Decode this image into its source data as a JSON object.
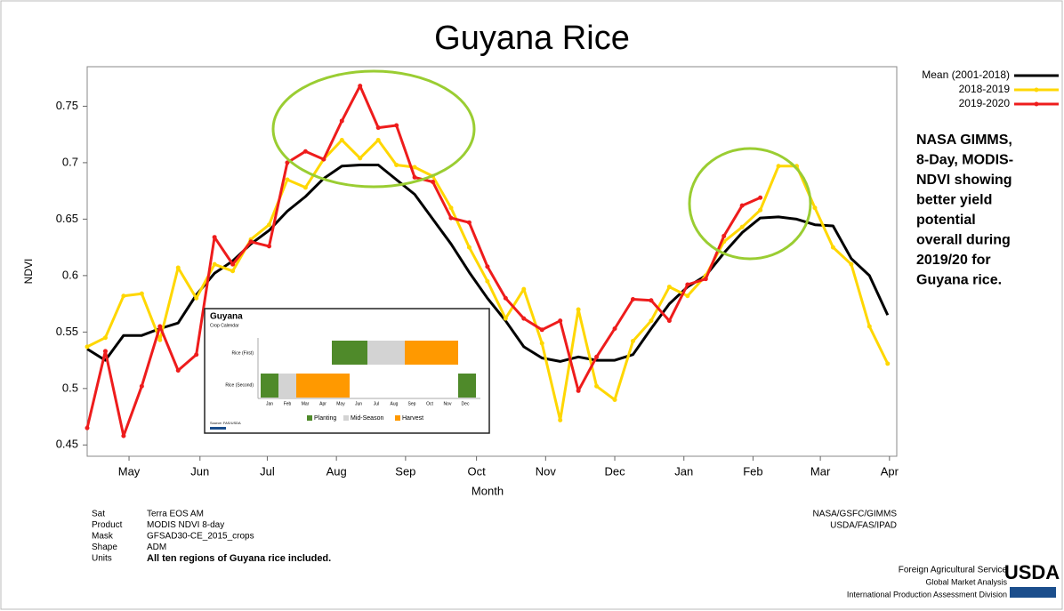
{
  "chart_data": {
    "type": "line",
    "title": "Guyana Rice",
    "x_label": "Month",
    "y_label": "NDVI",
    "x": [
      0,
      1,
      2,
      3,
      4,
      5,
      6,
      7,
      8,
      9,
      10,
      11,
      12,
      13,
      14,
      15,
      16,
      17,
      18,
      19,
      20,
      21,
      22,
      23,
      24,
      25,
      26,
      27,
      28,
      29,
      30,
      31,
      32,
      33,
      34,
      35,
      36,
      37,
      38,
      39,
      40,
      41,
      42,
      43,
      44
    ],
    "xlim": [
      0,
      44.5
    ],
    "xticks": [
      {
        "value": 2.3,
        "label": "May"
      },
      {
        "value": 6.2,
        "label": "Jun"
      },
      {
        "value": 9.9,
        "label": "Jul"
      },
      {
        "value": 13.7,
        "label": "Aug"
      },
      {
        "value": 17.5,
        "label": "Sep"
      },
      {
        "value": 21.4,
        "label": "Oct"
      },
      {
        "value": 25.2,
        "label": "Nov"
      },
      {
        "value": 29.0,
        "label": "Dec"
      },
      {
        "value": 32.8,
        "label": "Jan"
      },
      {
        "value": 36.6,
        "label": "Feb"
      },
      {
        "value": 40.3,
        "label": "Mar"
      },
      {
        "value": 44.1,
        "label": "Apr"
      }
    ],
    "ylim": [
      0.44,
      0.785
    ],
    "yticks": [
      0.45,
      0.5,
      0.55,
      0.6,
      0.65,
      0.7,
      0.75
    ],
    "grid": false,
    "legend": "top-right",
    "series": [
      {
        "name": "Mean (2001-2018)",
        "color": "#000000",
        "markers": false,
        "values": [
          0.535,
          0.525,
          0.547,
          0.547,
          0.553,
          0.558,
          0.583,
          0.602,
          0.613,
          0.628,
          0.64,
          0.657,
          0.67,
          0.686,
          0.697,
          0.698,
          0.698,
          0.685,
          0.672,
          0.65,
          0.628,
          0.603,
          0.58,
          0.56,
          0.537,
          0.527,
          0.524,
          0.528,
          0.525,
          0.525,
          0.53,
          0.553,
          0.575,
          0.59,
          0.6,
          0.62,
          0.638,
          0.651,
          0.652,
          0.65,
          0.645,
          0.644,
          0.615,
          0.6,
          0.565
        ]
      },
      {
        "name": "2018-2019",
        "color": "#ffd700",
        "markers": true,
        "values": [
          0.537,
          0.545,
          0.582,
          0.584,
          0.543,
          0.607,
          0.58,
          0.61,
          0.604,
          0.632,
          0.645,
          0.685,
          0.678,
          0.703,
          0.72,
          0.704,
          0.72,
          0.698,
          0.696,
          0.688,
          0.66,
          0.625,
          0.595,
          0.562,
          0.588,
          0.54,
          0.472,
          0.57,
          0.502,
          0.49,
          0.542,
          0.56,
          0.59,
          0.582,
          0.6,
          0.63,
          0.643,
          0.658,
          0.697,
          0.697,
          0.66,
          0.625,
          0.61,
          0.555,
          0.522
        ]
      },
      {
        "name": "2019-2020",
        "color": "#ee1c1c",
        "markers": true,
        "values": [
          0.465,
          0.533,
          0.458,
          0.502,
          0.555,
          0.516,
          0.53,
          0.634,
          0.61,
          0.63,
          0.626,
          0.7,
          0.71,
          0.703,
          0.737,
          0.768,
          0.731,
          0.733,
          0.687,
          0.683,
          0.651,
          0.647,
          0.608,
          0.58,
          0.562,
          0.552,
          0.56,
          0.498,
          0.528,
          0.553,
          0.579,
          0.578,
          0.56,
          0.592,
          0.597,
          0.635,
          0.662,
          0.669,
          null,
          null,
          null,
          null,
          null,
          null,
          null
        ]
      }
    ],
    "annotation": [
      "NASA GIMMS,",
      "8-Day, MODIS-",
      "NDVI showing",
      "better yield",
      "potential",
      "overall during",
      "2019/20 for",
      "Guyana rice."
    ]
  },
  "inset": {
    "title": "Guyana",
    "subtitle": "Crop Calendar",
    "rows": [
      "Rice (First)",
      "Rice (Second)"
    ],
    "months": [
      "Jan",
      "Feb",
      "Mar",
      "Apr",
      "May",
      "Jun",
      "Jul",
      "Aug",
      "Sep",
      "Oct",
      "Nov",
      "Dec"
    ],
    "legend": [
      "Planting",
      "Mid-Season",
      "Harvest"
    ],
    "source": "Source: FAS/USDA"
  },
  "metadata": {
    "labels": [
      "Sat",
      "Product",
      "Mask",
      "Shape",
      "Units"
    ],
    "values": [
      "Terra EOS AM",
      "MODIS NDVI 8-day",
      "GFSAD30-CE_2015_crops",
      "ADM",
      "All ten regions of Guyana rice included."
    ]
  },
  "credits": [
    "NASA/GSFC/GIMMS",
    "USDA/FAS/IPAD"
  ],
  "agency": {
    "lines": [
      "Foreign Agricultural Service",
      "Global Market Analysis",
      "International Production Assessment Division"
    ],
    "logo": "USDA"
  }
}
